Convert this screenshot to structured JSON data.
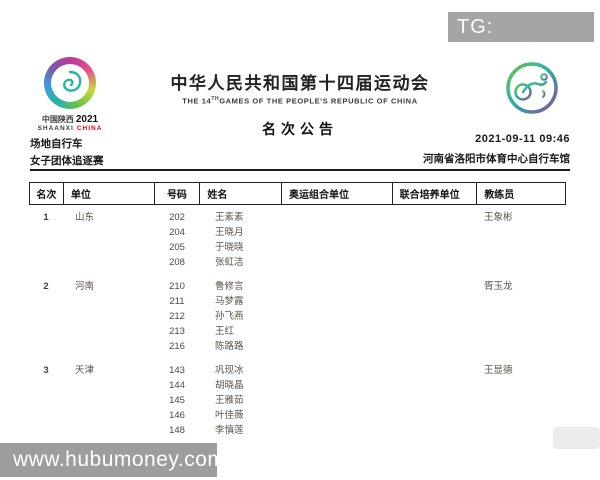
{
  "watermark_top": "TG: MYYJJPP",
  "header": {
    "title": "中华人民共和国第十四届运动会",
    "subtitle_pre": "THE 14",
    "subtitle_sup": "TH",
    "subtitle_post": "GAMES OF THE PEOPLE'S REPUBLIC OF CHINA",
    "announcement": "名次公告",
    "emblem": {
      "region_cn": "中国陕西",
      "year": "2021",
      "region_en": "SHAANXI",
      "country_en": "CHINA"
    }
  },
  "meta": {
    "sport": "场地自行车",
    "event": "女子团体追逐赛",
    "datetime": "2021-09-11 09:46",
    "venue": "河南省洛阳市体育中心自行车馆"
  },
  "table": {
    "columns": [
      "名次",
      "单位",
      "号码",
      "姓名",
      "奥运组合单位",
      "联合培养单位",
      "教练员"
    ],
    "groups": [
      {
        "rank": "1",
        "unit": "山东",
        "coach": "王象彬",
        "riders": [
          {
            "no": "202",
            "name": "王素素"
          },
          {
            "no": "204",
            "name": "王晓月"
          },
          {
            "no": "205",
            "name": "于晓晓"
          },
          {
            "no": "208",
            "name": "张虹洁"
          }
        ]
      },
      {
        "rank": "2",
        "unit": "河南",
        "coach": "胥玉龙",
        "riders": [
          {
            "no": "210",
            "name": "鲁修言"
          },
          {
            "no": "211",
            "name": "马梦露"
          },
          {
            "no": "212",
            "name": "孙飞燕"
          },
          {
            "no": "213",
            "name": "王红"
          },
          {
            "no": "216",
            "name": "陈路路"
          }
        ]
      },
      {
        "rank": "3",
        "unit": "天津",
        "coach": "王显德",
        "riders": [
          {
            "no": "143",
            "name": "巩现冰"
          },
          {
            "no": "144",
            "name": "胡晓晶"
          },
          {
            "no": "145",
            "name": "王雅茹"
          },
          {
            "no": "146",
            "name": "叶佳薇"
          },
          {
            "no": "148",
            "name": "李慎莲"
          }
        ]
      }
    ]
  },
  "watermark_bottom": "www.hubumoney.com",
  "colors": {
    "accent_red": "#e60012",
    "watermark_gray": "#9d9d9d",
    "rule_black": "#1c1c1c"
  }
}
